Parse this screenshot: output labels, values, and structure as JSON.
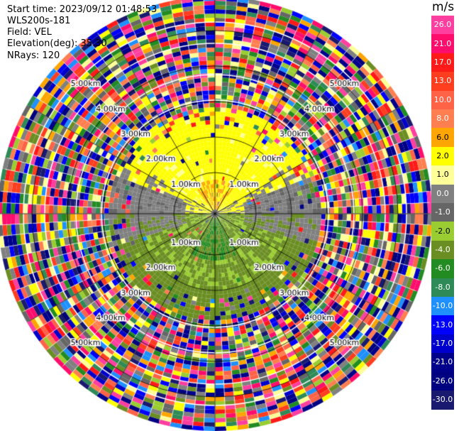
{
  "header": {
    "start_time": "Start time: 2023/09/12 01:48:53",
    "instrument": "WLS200s-181",
    "field": "Field: VEL",
    "elevation": "Elevation(deg): 35.30",
    "nrays": "NRays: 120"
  },
  "colorbar": {
    "unit": "m/s",
    "labels": [
      "26.0",
      "21.0",
      "17.0",
      "13.0",
      "10.0",
      "8.0",
      "6.0",
      "2.0",
      "1.0",
      "0.0",
      "-1.0",
      "-2.0",
      "-4.0",
      "-6.0",
      "-8.0",
      "-10.0",
      "-13.0",
      "-17.0",
      "-21.0",
      "-26.0",
      "-30.0"
    ],
    "colors": [
      "#ff3fa0",
      "#ff0d6d",
      "#ff1a1a",
      "#ff3d1f",
      "#ff6347",
      "#ff7f50",
      "#ffa500",
      "#ffff00",
      "#ffff99",
      "#808080",
      "#666666",
      "#9acd32",
      "#6b8e23",
      "#228b22",
      "#2e8b57",
      "#1e90ff",
      "#0000ff",
      "#0000cd",
      "#00008b",
      "#000080",
      "#191970"
    ]
  },
  "chart_data": {
    "type": "heatmap",
    "title": "",
    "projection": "polar PPI",
    "field": "VEL",
    "units": "m/s",
    "n_rays": 120,
    "elevation_deg": 35.3,
    "range_rings_km": [
      1.0,
      2.0,
      3.0,
      4.0,
      5.0
    ],
    "ring_labels": [
      "1.00km",
      "2.00km",
      "3.00km",
      "4.00km",
      "5.00km"
    ],
    "spoke_angles_deg": [
      0,
      30,
      60,
      90,
      120,
      150,
      180,
      210,
      240,
      270,
      300,
      330
    ],
    "max_range_km": 5.3,
    "description_regions": [
      {
        "sector": "north half, 0.3-2.6 km",
        "value_ms": 2.0
      },
      {
        "sector": "near north, 0-1 km",
        "value_ms": 6.0
      },
      {
        "sector": "east/west near horizontal",
        "value_ms": 0.0
      },
      {
        "sector": "south half, 0.3-2.6 km",
        "value_ms": -4.0
      },
      {
        "sector": "near south, 0-1 km",
        "value_ms": -6.0
      },
      {
        "sector": "beyond 2.6 km",
        "value_ms": "noise"
      }
    ]
  }
}
